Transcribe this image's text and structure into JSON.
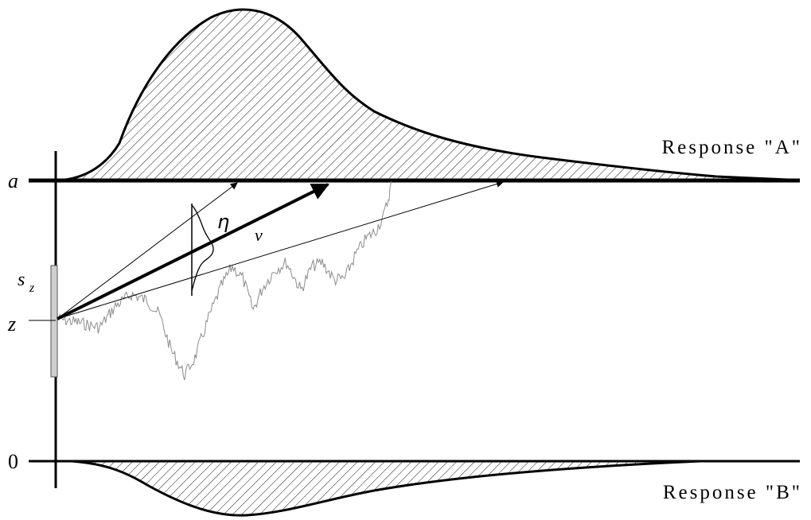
{
  "labels": {
    "upper_boundary": "a",
    "lower_boundary": "0",
    "start_point": "z",
    "start_variability": "s",
    "start_variability_sub": "z",
    "drift_rate": "v",
    "drift_variability": "η",
    "response_a": "Response \"A\"",
    "response_b": "Response \"B\""
  },
  "colors": {
    "ink": "#000000",
    "trace": "#8c8c8c",
    "start_range_fill": "#cfcfcf"
  }
}
